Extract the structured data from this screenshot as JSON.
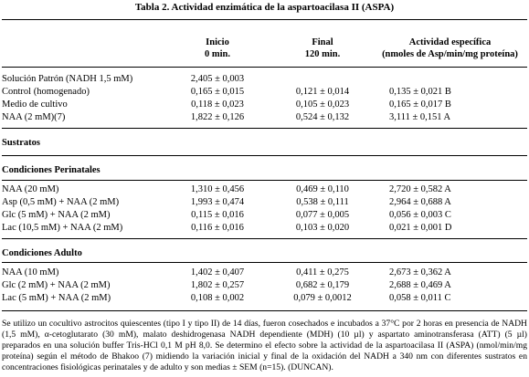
{
  "title": "Tabla 2. Actividad enzimática de la aspartoacilasa II (ASPA)",
  "headers": {
    "col1": [
      "Inicio",
      "0 min."
    ],
    "col2": [
      "Final",
      "120 min."
    ],
    "col3": [
      "Actividad específica",
      "(nmoles de Asp/min/mg proteína)"
    ]
  },
  "group0": [
    {
      "label": "Solución Patrón (NADH 1,5 mM)",
      "inicio": "2,405 ± 0,003",
      "final": "",
      "actividad": ""
    },
    {
      "label": "Control  (homogenado)",
      "inicio": "0,165 ± 0,015",
      "final": "0,121 ± 0,014",
      "actividad": "0,135 ± 0,021 B"
    },
    {
      "label": "Medio de cultivo",
      "inicio": "0,118 ± 0,023",
      "final": "0,105 ± 0,023",
      "actividad": "0,165 ± 0,017 B"
    },
    {
      "label": "NAA (2 mM)(7)",
      "inicio": "1,822 ± 0,126",
      "final": "0,524 ± 0,132",
      "actividad": "3,111 ± 0,151 A"
    }
  ],
  "sustratos_label": "Sustratos",
  "perinatales_label": "Condiciones Perinatales",
  "perinatales": [
    {
      "label": "NAA (20 mM)",
      "inicio": "1,310 ± 0,456",
      "final": "0,469 ± 0,110",
      "actividad": "2,720 ± 0,582 A"
    },
    {
      "label": "Asp (0,5 mM) + NAA (2 mM)",
      "inicio": "1,993 ± 0,474",
      "final": "0,538 ± 0,111",
      "actividad": "2,964 ± 0,688 A"
    },
    {
      "label": "Glc (5 mM) + NAA (2 mM)",
      "inicio": "0,115 ± 0,016",
      "final": "0,077 ± 0,005",
      "actividad": "0,056 ± 0,003 C"
    },
    {
      "label": "Lac (10,5 mM) + NAA (2 mM)",
      "inicio": "0,116 ± 0,016",
      "final": "0,103 ± 0,020",
      "actividad": "0,021 ± 0,001 D"
    }
  ],
  "adulto_label": "Condiciones Adulto",
  "adulto": [
    {
      "label": "NAA (10 mM)",
      "inicio": "1,402 ± 0,407",
      "final": "0,411 ± 0,275",
      "actividad": "2,673 ± 0,362 A"
    },
    {
      "label": "Glc (2 mM) + NAA (2 mM)",
      "inicio": "1,802 ± 0,257",
      "final": "0,682 ± 0,179",
      "actividad": "2,688 ± 0,469 A"
    },
    {
      "label": "Lac (5 mM) + NAA (2 mM)",
      "inicio": "0,108 ± 0,002",
      "final": "0,079 ± 0,0012",
      "actividad": "0,058 ± 0,011 C"
    }
  ],
  "footnote": "Se utilizo un cocultivo astrocitos quiescentes (tipo I y tipo II) de 14 días, fueron cosechados e incubados a 37°C por 2 horas en presencia de NADH (1,5 mM), α-cetoglutarato (30 mM), malato deshidrogenasa NADH dependiente (MDH) (10 µl) y aspartato aminotransferasa (ATT) (5 µl) preparados en una solución buffer Tris-HCl 0,1 M pH 8,0. Se determino el efecto sobre la actividad de la aspartoacilasa II (ASPA) (nmol/min/mg proteína) según el método de Bhakoo (7) midiendo la variación inicial y final de la oxidación del NADH a 340 nm con diferentes sustratos en concentraciones fisiológicas perinatales y de adulto y son medias ± SEM (n=15). (DUNCAN)."
}
